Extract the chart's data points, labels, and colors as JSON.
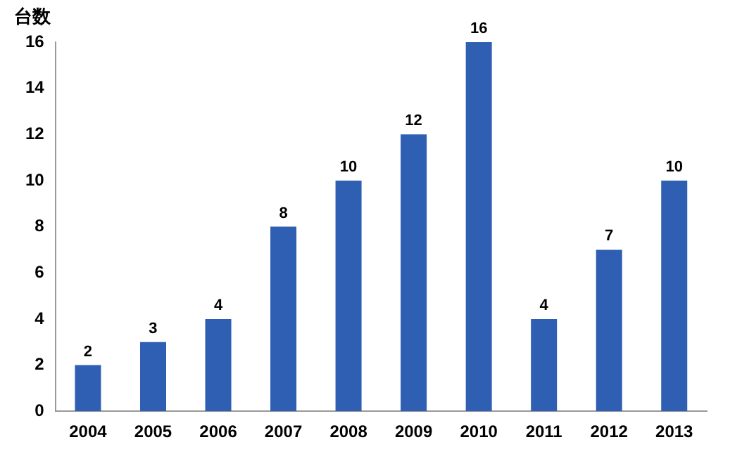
{
  "chart_data": {
    "type": "bar",
    "ylabel": "台数",
    "categories": [
      "2004",
      "2005",
      "2006",
      "2007",
      "2008",
      "2009",
      "2010",
      "2011",
      "2012",
      "2013"
    ],
    "values": [
      2,
      3,
      4,
      8,
      10,
      12,
      16,
      4,
      7,
      10
    ],
    "color": "#2f5fb3",
    "ylim": [
      0,
      16
    ],
    "yticks": [
      0,
      2,
      4,
      6,
      8,
      10,
      12,
      14,
      16
    ],
    "grid": false,
    "legend": false,
    "data_labels": true
  }
}
